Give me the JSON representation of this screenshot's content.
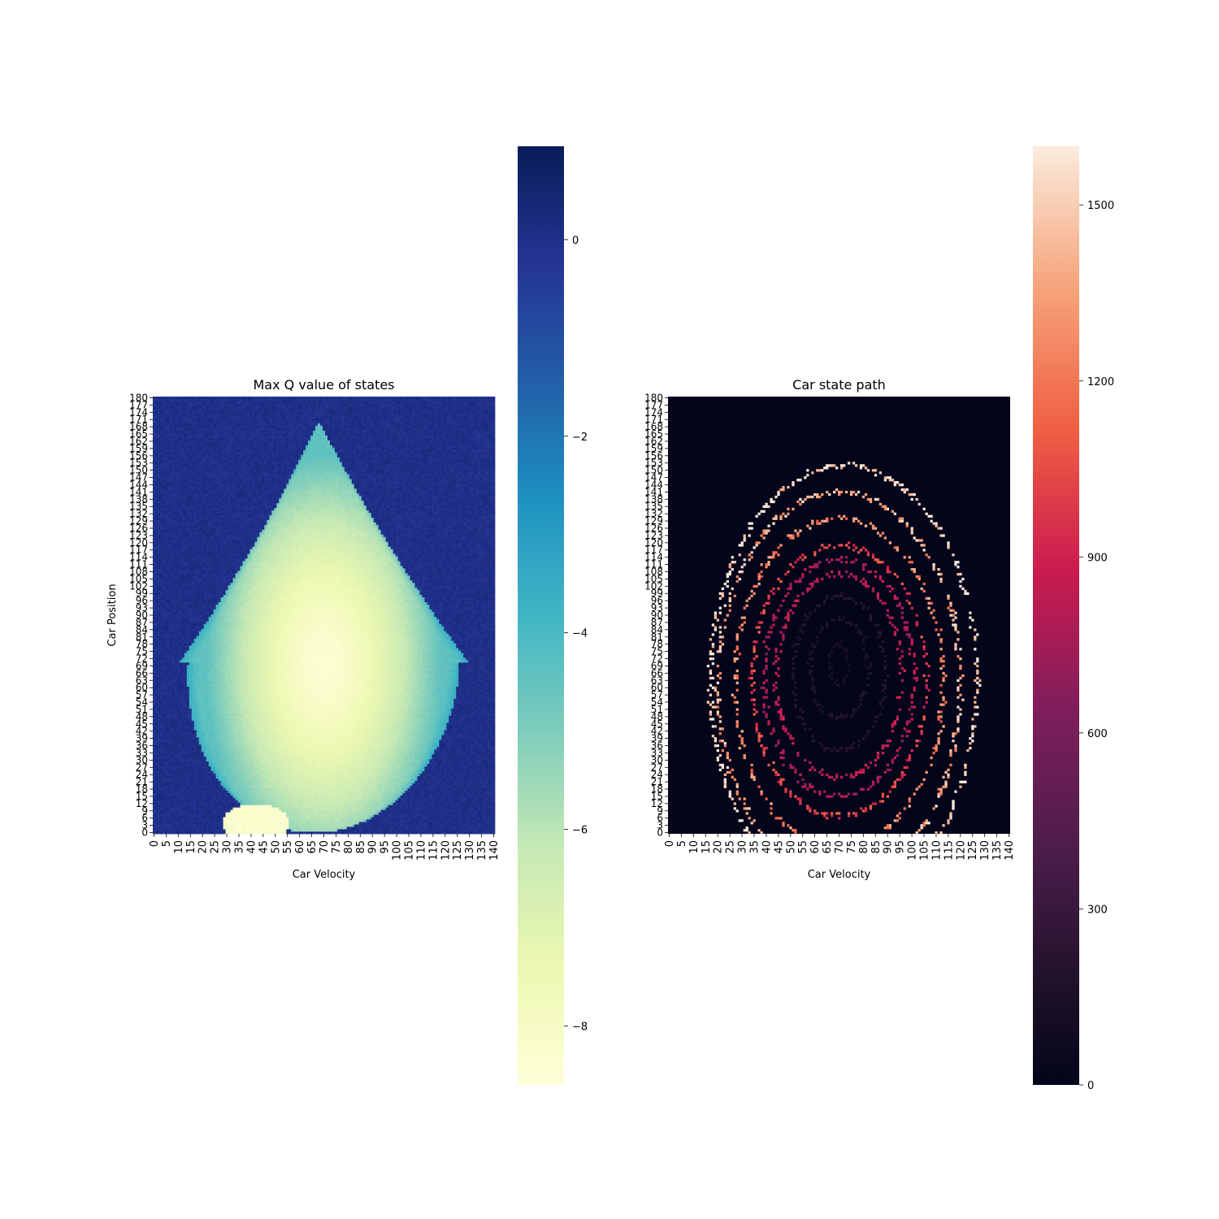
{
  "chart_data": [
    {
      "type": "heatmap",
      "title": "Max Q value of states",
      "xlabel": "Car Velocity",
      "ylabel": "Car Position",
      "x_range": [
        0,
        140
      ],
      "y_range": [
        0,
        180
      ],
      "x_ticks": [
        "0",
        "5",
        "10",
        "15",
        "20",
        "25",
        "30",
        "35",
        "40",
        "45",
        "50",
        "55",
        "60",
        "65",
        "70",
        "75",
        "80",
        "85",
        "90",
        "95",
        "100",
        "105",
        "110",
        "115",
        "120",
        "125",
        "130",
        "135",
        "140"
      ],
      "y_ticks": [
        "0",
        "3",
        "6",
        "9",
        "12",
        "15",
        "18",
        "21",
        "24",
        "27",
        "30",
        "33",
        "36",
        "39",
        "42",
        "45",
        "48",
        "51",
        "54",
        "57",
        "60",
        "63",
        "66",
        "69",
        "72",
        "75",
        "78",
        "81",
        "84",
        "87",
        "90",
        "93",
        "96",
        "99",
        "102",
        "105",
        "108",
        "111",
        "114",
        "117",
        "120",
        "123",
        "126",
        "129",
        "132",
        "135",
        "138",
        "141",
        "144",
        "147",
        "150",
        "153",
        "156",
        "159",
        "162",
        "165",
        "168",
        "171",
        "174",
        "177",
        "180"
      ],
      "colormap": "YlGnBu",
      "colorbar": {
        "min": -8.6,
        "max": 0.95,
        "ticks": [
          "0",
          "−2",
          "−4",
          "−6",
          "−8"
        ],
        "tick_values": [
          0,
          -2,
          -4,
          -6,
          -8
        ],
        "reversed": true
      },
      "regions": {
        "background_value": 0.0,
        "core_value": -8.4,
        "core_center": {
          "velocity": 70,
          "position": 70
        },
        "edge_value": -4.4,
        "tip": {
          "velocity": 70,
          "position": 170
        },
        "bottom_blob": {
          "velocity": 42,
          "position": 4,
          "value": -8.2
        }
      },
      "grid": false,
      "legend": "none"
    },
    {
      "type": "heatmap",
      "title": "Car state path",
      "xlabel": "Car Velocity",
      "ylabel": "",
      "x_range": [
        0,
        140
      ],
      "y_range": [
        0,
        180
      ],
      "x_ticks": [
        "0",
        "5",
        "10",
        "15",
        "20",
        "25",
        "30",
        "35",
        "40",
        "45",
        "50",
        "55",
        "60",
        "65",
        "70",
        "75",
        "80",
        "85",
        "90",
        "95",
        "100",
        "105",
        "110",
        "115",
        "120",
        "125",
        "130",
        "135",
        "140"
      ],
      "y_ticks": [
        "0",
        "3",
        "6",
        "9",
        "12",
        "15",
        "18",
        "21",
        "24",
        "27",
        "30",
        "33",
        "36",
        "39",
        "42",
        "45",
        "48",
        "51",
        "54",
        "57",
        "60",
        "63",
        "66",
        "69",
        "72",
        "75",
        "78",
        "81",
        "84",
        "87",
        "90",
        "93",
        "96",
        "99",
        "102",
        "105",
        "108",
        "111",
        "114",
        "117",
        "120",
        "123",
        "126",
        "129",
        "132",
        "135",
        "138",
        "141",
        "144",
        "147",
        "150",
        "153",
        "156",
        "159",
        "162",
        "165",
        "168",
        "171",
        "174",
        "177",
        "180"
      ],
      "colormap": "rocket",
      "colorbar": {
        "min": 0,
        "max": 1600,
        "ticks": [
          "0",
          "300",
          "600",
          "900",
          "1200",
          "1500"
        ],
        "tick_values": [
          0,
          300,
          600,
          900,
          1200,
          1500
        ]
      },
      "background_value": 0,
      "trajectory_loops": [
        {
          "center_velocity": 70,
          "center_position": 70,
          "radius_velocity": 4,
          "radius_position": 8,
          "value": 140
        },
        {
          "center_velocity": 70,
          "center_position": 68,
          "radius_velocity": 12,
          "radius_position": 20,
          "value": 170
        },
        {
          "center_velocity": 70,
          "center_position": 66,
          "radius_velocity": 19,
          "radius_position": 32,
          "value": 200
        },
        {
          "center_velocity": 70,
          "center_position": 65,
          "radius_velocity": 26,
          "radius_position": 42,
          "value": 820
        },
        {
          "center_velocity": 70,
          "center_position": 64,
          "radius_velocity": 31,
          "radius_position": 49,
          "value": 780
        },
        {
          "center_velocity": 70,
          "center_position": 63,
          "radius_velocity": 36,
          "radius_position": 56,
          "value": 1000
        },
        {
          "center_velocity": 70,
          "center_position": 62,
          "radius_velocity": 43,
          "radius_position": 68,
          "value": 1250
        },
        {
          "center_velocity": 70,
          "center_position": 61,
          "radius_velocity": 50,
          "radius_position": 80,
          "value": 1400
        },
        {
          "center_velocity": 72,
          "center_position": 62,
          "radius_velocity": 55,
          "radius_position": 90,
          "value": 1600
        }
      ],
      "grid": false,
      "legend": "none"
    }
  ]
}
